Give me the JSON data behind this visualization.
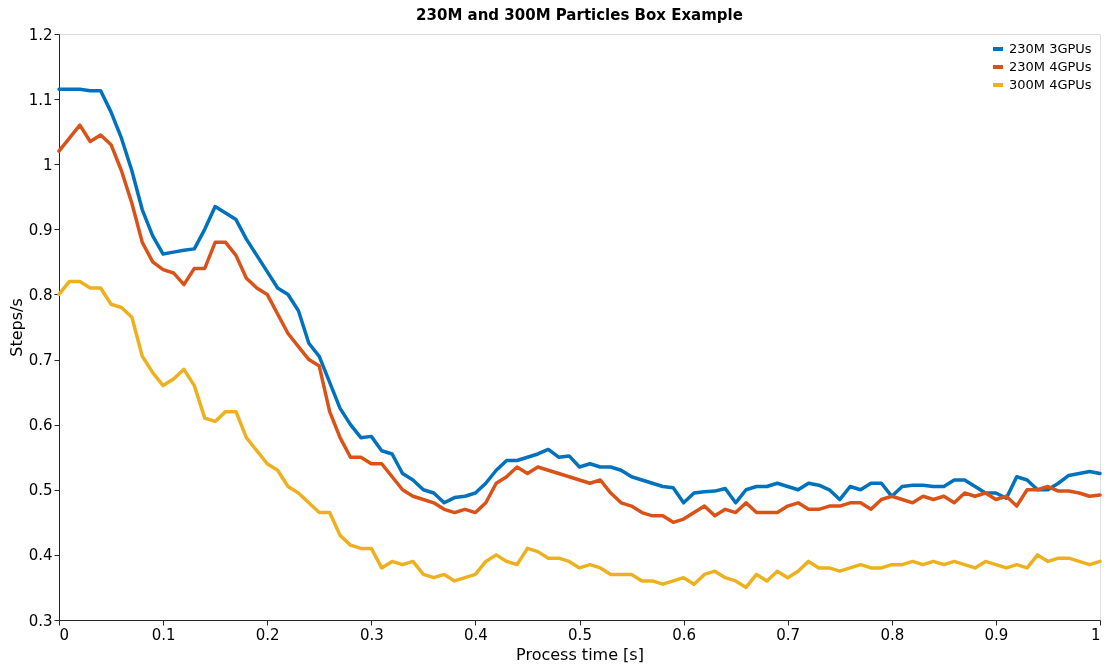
{
  "chart_data": {
    "type": "line",
    "title": "230M and 300M Particles Box Example",
    "xlabel": "Process time [s]",
    "ylabel": "Steps/s",
    "x": [
      0,
      0.01,
      0.02,
      0.03,
      0.04,
      0.05,
      0.06,
      0.07,
      0.08,
      0.09,
      0.1,
      0.11,
      0.12,
      0.13,
      0.14,
      0.15,
      0.16,
      0.17,
      0.18,
      0.19,
      0.2,
      0.21,
      0.22,
      0.23,
      0.24,
      0.25,
      0.26,
      0.27,
      0.28,
      0.29,
      0.3,
      0.31,
      0.32,
      0.33,
      0.34,
      0.35,
      0.36,
      0.37,
      0.38,
      0.39,
      0.4,
      0.41,
      0.42,
      0.43,
      0.44,
      0.45,
      0.46,
      0.47,
      0.48,
      0.49,
      0.5,
      0.51,
      0.52,
      0.53,
      0.54,
      0.55,
      0.56,
      0.57,
      0.58,
      0.59,
      0.6,
      0.61,
      0.62,
      0.63,
      0.64,
      0.65,
      0.66,
      0.67,
      0.68,
      0.69,
      0.7,
      0.71,
      0.72,
      0.73,
      0.74,
      0.75,
      0.76,
      0.77,
      0.78,
      0.79,
      0.8,
      0.81,
      0.82,
      0.83,
      0.84,
      0.85,
      0.86,
      0.87,
      0.88,
      0.89,
      0.9,
      0.91,
      0.92,
      0.93,
      0.94,
      0.95,
      0.96,
      0.97,
      0.98,
      0.99,
      1
    ],
    "series": [
      {
        "name": "230M 3GPUs",
        "color": "#0072bd",
        "values": [
          1.115,
          1.115,
          1.115,
          1.113,
          1.113,
          1.08,
          1.04,
          0.99,
          0.93,
          0.89,
          0.862,
          0.865,
          0.868,
          0.87,
          0.9,
          0.935,
          0.925,
          0.915,
          0.885,
          0.86,
          0.835,
          0.81,
          0.8,
          0.775,
          0.725,
          0.705,
          0.665,
          0.625,
          0.6,
          0.58,
          0.582,
          0.56,
          0.555,
          0.525,
          0.515,
          0.5,
          0.495,
          0.48,
          0.488,
          0.49,
          0.495,
          0.51,
          0.53,
          0.545,
          0.545,
          0.55,
          0.555,
          0.562,
          0.55,
          0.552,
          0.535,
          0.54,
          0.535,
          0.535,
          0.53,
          0.52,
          0.515,
          0.51,
          0.505,
          0.503,
          0.48,
          0.495,
          0.497,
          0.498,
          0.502,
          0.48,
          0.5,
          0.505,
          0.505,
          0.51,
          0.505,
          0.5,
          0.51,
          0.507,
          0.5,
          0.485,
          0.505,
          0.5,
          0.51,
          0.51,
          0.49,
          0.505,
          0.507,
          0.507,
          0.505,
          0.505,
          0.515,
          0.515,
          0.505,
          0.495,
          0.495,
          0.487,
          0.52,
          0.515,
          0.5,
          0.5,
          0.51,
          0.522,
          0.525,
          0.528,
          0.525
        ]
      },
      {
        "name": "230M 4GPUs",
        "color": "#d95319",
        "values": [
          1.02,
          1.04,
          1.06,
          1.035,
          1.045,
          1.03,
          0.99,
          0.94,
          0.88,
          0.85,
          0.838,
          0.833,
          0.815,
          0.84,
          0.84,
          0.88,
          0.88,
          0.86,
          0.825,
          0.81,
          0.8,
          0.77,
          0.74,
          0.72,
          0.7,
          0.69,
          0.62,
          0.58,
          0.55,
          0.55,
          0.54,
          0.54,
          0.52,
          0.5,
          0.49,
          0.485,
          0.48,
          0.47,
          0.465,
          0.47,
          0.465,
          0.48,
          0.51,
          0.52,
          0.535,
          0.525,
          0.535,
          0.53,
          0.525,
          0.52,
          0.515,
          0.51,
          0.515,
          0.495,
          0.48,
          0.475,
          0.465,
          0.46,
          0.46,
          0.45,
          0.455,
          0.465,
          0.475,
          0.46,
          0.47,
          0.465,
          0.48,
          0.465,
          0.465,
          0.465,
          0.475,
          0.48,
          0.47,
          0.47,
          0.475,
          0.475,
          0.48,
          0.48,
          0.47,
          0.485,
          0.49,
          0.485,
          0.48,
          0.49,
          0.485,
          0.49,
          0.48,
          0.495,
          0.49,
          0.495,
          0.485,
          0.49,
          0.475,
          0.5,
          0.5,
          0.505,
          0.498,
          0.498,
          0.495,
          0.49,
          0.492
        ]
      },
      {
        "name": "300M 4GPUs",
        "color": "#edb120",
        "values": [
          0.8,
          0.82,
          0.82,
          0.81,
          0.81,
          0.785,
          0.78,
          0.765,
          0.705,
          0.68,
          0.66,
          0.67,
          0.685,
          0.66,
          0.61,
          0.605,
          0.62,
          0.62,
          0.58,
          0.56,
          0.54,
          0.53,
          0.505,
          0.495,
          0.48,
          0.465,
          0.465,
          0.43,
          0.415,
          0.41,
          0.41,
          0.38,
          0.39,
          0.385,
          0.39,
          0.37,
          0.365,
          0.37,
          0.36,
          0.365,
          0.37,
          0.39,
          0.4,
          0.39,
          0.385,
          0.41,
          0.405,
          0.395,
          0.395,
          0.39,
          0.38,
          0.385,
          0.38,
          0.37,
          0.37,
          0.37,
          0.36,
          0.36,
          0.355,
          0.36,
          0.365,
          0.355,
          0.37,
          0.375,
          0.365,
          0.36,
          0.35,
          0.37,
          0.36,
          0.375,
          0.365,
          0.375,
          0.39,
          0.38,
          0.38,
          0.375,
          0.38,
          0.385,
          0.38,
          0.38,
          0.385,
          0.385,
          0.39,
          0.385,
          0.39,
          0.385,
          0.39,
          0.385,
          0.38,
          0.39,
          0.385,
          0.38,
          0.385,
          0.38,
          0.4,
          0.39,
          0.395,
          0.395,
          0.39,
          0.385,
          0.39
        ]
      }
    ],
    "xlim": [
      0,
      1
    ],
    "xticks": [
      0,
      0.1,
      0.2,
      0.3,
      0.4,
      0.5,
      0.6,
      0.7,
      0.8,
      0.9,
      1
    ],
    "ylim": [
      0.3,
      1.2
    ],
    "yticks": [
      0.3,
      0.4,
      0.5,
      0.6,
      0.7,
      0.8,
      0.9,
      1,
      1.1,
      1.2
    ],
    "legend": "top right",
    "grid": false,
    "line_style": "solid",
    "marker": "none"
  }
}
